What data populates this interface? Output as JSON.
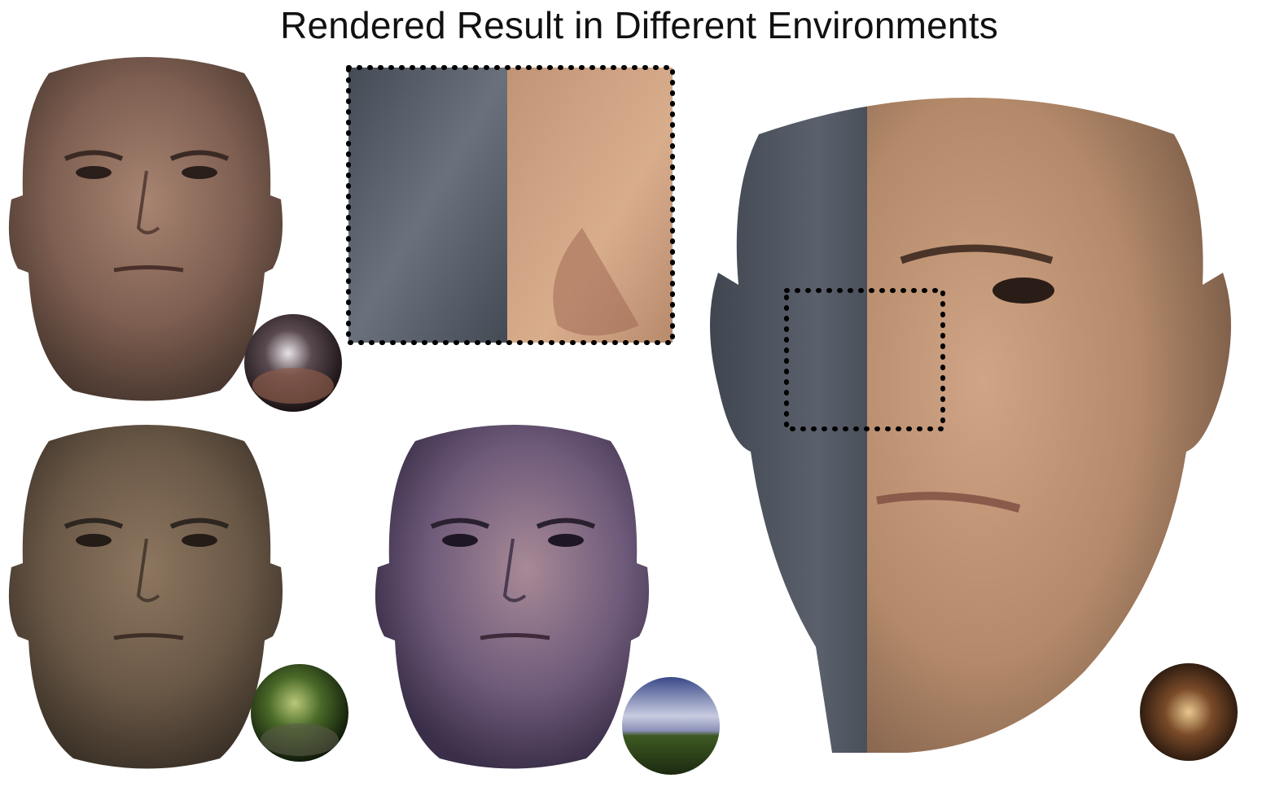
{
  "figure": {
    "title": "Rendered Result in Different Environments"
  },
  "panels": [
    {
      "id": "face-tl",
      "environment_probe": "indoor-hall-probe",
      "tint": "#7a5a4c"
    },
    {
      "id": "face-bl",
      "environment_probe": "forest-probe",
      "tint": "#6e5c48"
    },
    {
      "id": "face-bm",
      "environment_probe": "sky-field-probe",
      "tint": "#6c5876"
    },
    {
      "id": "face-big",
      "environment_probe": "interior-lobby-probe",
      "tint_left": "#4d535f",
      "tint_right": "#b48a6a"
    }
  ],
  "colors": {
    "background": "#ffffff",
    "geometry_gray": "#4e5562",
    "skin": "#c89a78",
    "inset_border": "#000000"
  }
}
